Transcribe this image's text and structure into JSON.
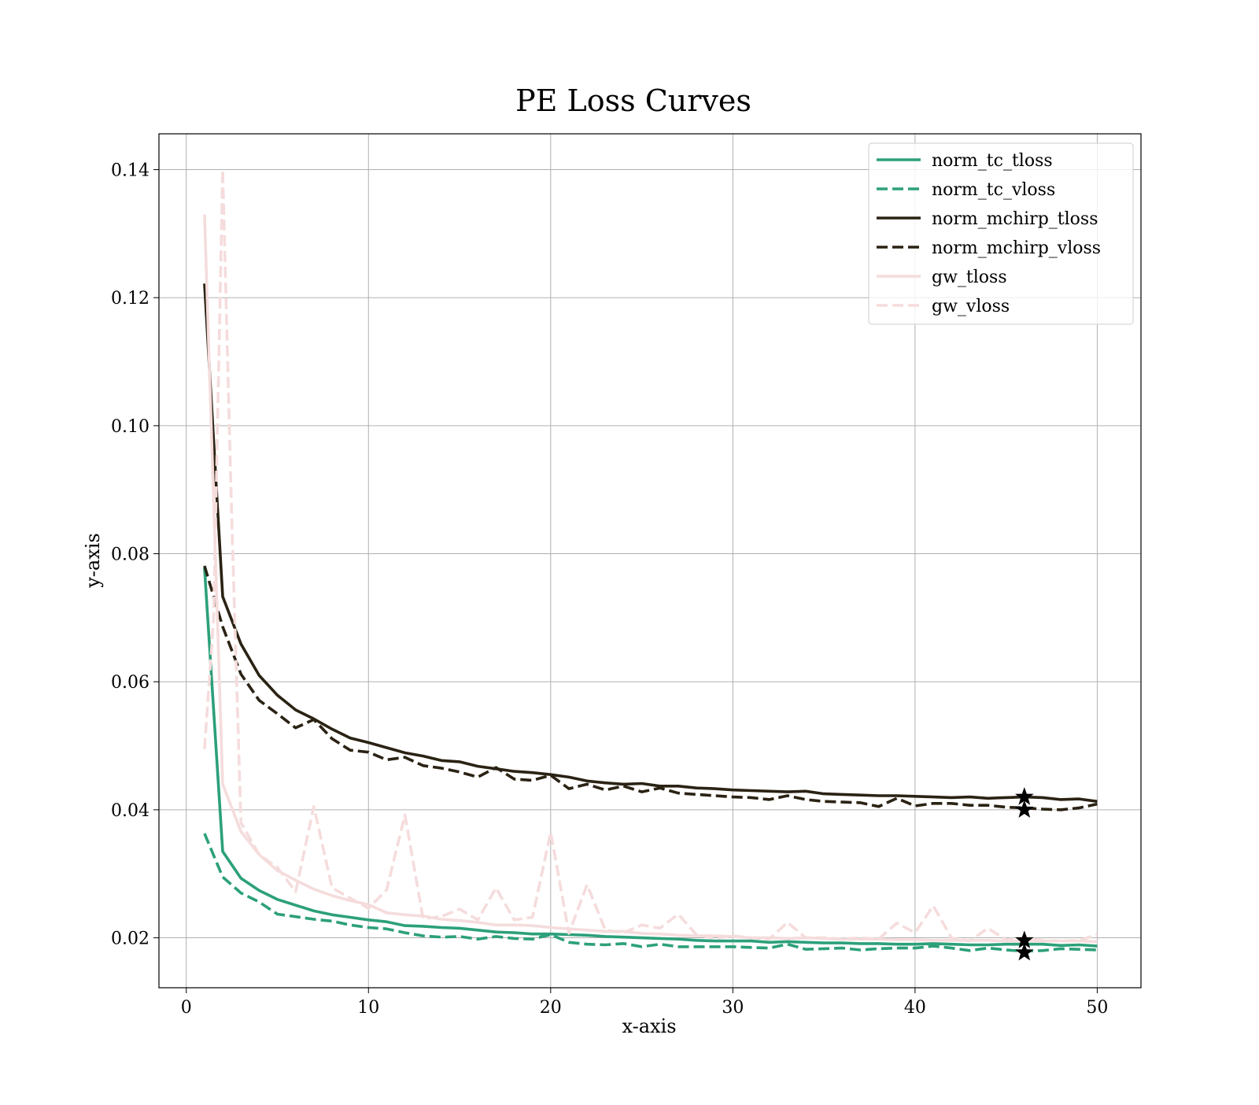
{
  "chart_data": {
    "type": "line",
    "title": "PE Loss Curves",
    "xlabel": "x-axis",
    "ylabel": "y-axis",
    "xlim": [
      -1.5,
      52.4
    ],
    "ylim": [
      0.0122,
      0.1456
    ],
    "xticks": [
      0,
      10,
      20,
      30,
      40,
      50
    ],
    "yticks": [
      0.02,
      0.04,
      0.06,
      0.08,
      0.1,
      0.12,
      0.14
    ],
    "ytick_labels": [
      "0.02",
      "0.04",
      "0.06",
      "0.08",
      "0.10",
      "0.12",
      "0.14"
    ],
    "grid": true,
    "legend_position": "top-right",
    "series": [
      {
        "name": "norm_tc_tloss",
        "color": "#2ca07a",
        "dash": "solid",
        "x": [
          1,
          2,
          3,
          4,
          5,
          6,
          7,
          8,
          9,
          10,
          11,
          12,
          13,
          14,
          15,
          16,
          17,
          18,
          19,
          20,
          21,
          22,
          23,
          24,
          25,
          26,
          27,
          28,
          29,
          30,
          31,
          32,
          33,
          34,
          35,
          36,
          37,
          38,
          39,
          40,
          41,
          42,
          43,
          44,
          45,
          46,
          47,
          48,
          49,
          50
        ],
        "values": [
          0.0778,
          0.0335,
          0.0293,
          0.0274,
          0.026,
          0.0251,
          0.0242,
          0.0236,
          0.0232,
          0.0228,
          0.0225,
          0.0219,
          0.0218,
          0.0216,
          0.0215,
          0.0212,
          0.0209,
          0.0208,
          0.0206,
          0.0206,
          0.0205,
          0.0204,
          0.0202,
          0.0201,
          0.02,
          0.0199,
          0.0198,
          0.0196,
          0.0195,
          0.0195,
          0.0195,
          0.0193,
          0.0194,
          0.0193,
          0.0192,
          0.0192,
          0.0191,
          0.0191,
          0.019,
          0.019,
          0.0191,
          0.019,
          0.0189,
          0.0189,
          0.019,
          0.019,
          0.019,
          0.0188,
          0.0189,
          0.0187
        ]
      },
      {
        "name": "norm_tc_vloss",
        "color": "#2ca07a",
        "dash": "dashed",
        "x": [
          1,
          2,
          3,
          4,
          5,
          6,
          7,
          8,
          9,
          10,
          11,
          12,
          13,
          14,
          15,
          16,
          17,
          18,
          19,
          20,
          21,
          22,
          23,
          24,
          25,
          26,
          27,
          28,
          29,
          30,
          31,
          32,
          33,
          34,
          35,
          36,
          37,
          38,
          39,
          40,
          41,
          42,
          43,
          44,
          45,
          46,
          47,
          48,
          49,
          50
        ],
        "values": [
          0.0363,
          0.0295,
          0.027,
          0.0256,
          0.0237,
          0.0233,
          0.0229,
          0.0226,
          0.022,
          0.0216,
          0.0214,
          0.0208,
          0.0203,
          0.0201,
          0.0202,
          0.0198,
          0.0202,
          0.0199,
          0.0198,
          0.0205,
          0.0193,
          0.019,
          0.0189,
          0.0191,
          0.0186,
          0.019,
          0.0186,
          0.0186,
          0.0186,
          0.0186,
          0.0185,
          0.0184,
          0.019,
          0.0182,
          0.0183,
          0.0184,
          0.0181,
          0.0183,
          0.0184,
          0.0184,
          0.0187,
          0.0184,
          0.018,
          0.0184,
          0.0181,
          0.0179,
          0.018,
          0.0183,
          0.0182,
          0.0181
        ]
      },
      {
        "name": "norm_mchirp_tloss",
        "color": "#2a2213",
        "dash": "solid",
        "x": [
          1,
          2,
          3,
          4,
          5,
          6,
          7,
          8,
          9,
          10,
          11,
          12,
          13,
          14,
          15,
          16,
          17,
          18,
          19,
          20,
          21,
          22,
          23,
          24,
          25,
          26,
          27,
          28,
          29,
          30,
          31,
          32,
          33,
          34,
          35,
          36,
          37,
          38,
          39,
          40,
          41,
          42,
          43,
          44,
          45,
          46,
          47,
          48,
          49,
          50
        ],
        "values": [
          0.1222,
          0.0733,
          0.0659,
          0.061,
          0.0579,
          0.0556,
          0.0542,
          0.0526,
          0.0512,
          0.0505,
          0.0497,
          0.0489,
          0.0484,
          0.0477,
          0.0475,
          0.0468,
          0.0464,
          0.046,
          0.0458,
          0.0455,
          0.0451,
          0.0445,
          0.0442,
          0.044,
          0.0441,
          0.0437,
          0.0437,
          0.0434,
          0.0433,
          0.0431,
          0.043,
          0.0429,
          0.0428,
          0.0429,
          0.0425,
          0.0424,
          0.0423,
          0.0422,
          0.0422,
          0.0421,
          0.042,
          0.0419,
          0.042,
          0.0418,
          0.0419,
          0.042,
          0.0419,
          0.0416,
          0.0417,
          0.0413
        ]
      },
      {
        "name": "norm_mchirp_vloss",
        "color": "#2a2213",
        "dash": "dashed",
        "x": [
          1,
          2,
          3,
          4,
          5,
          6,
          7,
          8,
          9,
          10,
          11,
          12,
          13,
          14,
          15,
          16,
          17,
          18,
          19,
          20,
          21,
          22,
          23,
          24,
          25,
          26,
          27,
          28,
          29,
          30,
          31,
          32,
          33,
          34,
          35,
          36,
          37,
          38,
          39,
          40,
          41,
          42,
          43,
          44,
          45,
          46,
          47,
          48,
          49,
          50
        ],
        "values": [
          0.0781,
          0.0686,
          0.0612,
          0.0571,
          0.055,
          0.0528,
          0.0541,
          0.0511,
          0.0493,
          0.049,
          0.0478,
          0.0482,
          0.0469,
          0.0465,
          0.0459,
          0.0451,
          0.0466,
          0.0448,
          0.0446,
          0.0454,
          0.0433,
          0.044,
          0.0431,
          0.0437,
          0.0428,
          0.0434,
          0.0426,
          0.0424,
          0.0422,
          0.042,
          0.0419,
          0.0416,
          0.0422,
          0.0416,
          0.0413,
          0.0412,
          0.0411,
          0.0405,
          0.0418,
          0.0406,
          0.041,
          0.041,
          0.0407,
          0.0407,
          0.0404,
          0.0403,
          0.0401,
          0.04,
          0.0403,
          0.0409
        ]
      },
      {
        "name": "gw_tloss",
        "color": "#f5dcdc",
        "dash": "solid",
        "x": [
          1,
          2,
          3,
          4,
          5,
          6,
          7,
          8,
          9,
          10,
          11,
          12,
          13,
          14,
          15,
          16,
          17,
          18,
          19,
          20,
          21,
          22,
          23,
          24,
          25,
          26,
          27,
          28,
          29,
          30,
          31,
          32,
          33,
          34,
          35,
          36,
          37,
          38,
          39,
          40,
          41,
          42,
          43,
          44,
          45,
          46,
          47,
          48,
          49,
          50
        ],
        "values": [
          0.133,
          0.044,
          0.0366,
          0.033,
          0.0305,
          0.029,
          0.0276,
          0.0266,
          0.0258,
          0.0252,
          0.0239,
          0.0236,
          0.0234,
          0.0229,
          0.0227,
          0.0224,
          0.022,
          0.022,
          0.0219,
          0.0216,
          0.0214,
          0.0212,
          0.021,
          0.021,
          0.0207,
          0.0206,
          0.0204,
          0.0203,
          0.0203,
          0.0202,
          0.02,
          0.02,
          0.0199,
          0.02,
          0.0199,
          0.0198,
          0.0198,
          0.0198,
          0.0197,
          0.0197,
          0.0196,
          0.0196,
          0.0196,
          0.0196,
          0.0195,
          0.0195,
          0.0195,
          0.0195,
          0.0195,
          0.0194
        ]
      },
      {
        "name": "gw_vloss",
        "color": "#f5dcdc",
        "dash": "dashed",
        "x": [
          1,
          1.5,
          2,
          2.5,
          3,
          4,
          5,
          6,
          7,
          8,
          9,
          10,
          11,
          12,
          13,
          14,
          15,
          16,
          17,
          18,
          19,
          20,
          21,
          22,
          23,
          24,
          25,
          26,
          27,
          28,
          29,
          30,
          31,
          32,
          33,
          34,
          35,
          36,
          37,
          38,
          39,
          40,
          41,
          42,
          43,
          44,
          45,
          46,
          47,
          48,
          49,
          50
        ],
        "values": [
          0.0495,
          0.07,
          0.14,
          0.085,
          0.038,
          0.033,
          0.031,
          0.0272,
          0.0405,
          0.0278,
          0.0262,
          0.0246,
          0.0275,
          0.0392,
          0.023,
          0.0233,
          0.0245,
          0.0228,
          0.0278,
          0.0228,
          0.0232,
          0.0365,
          0.0207,
          0.0283,
          0.0212,
          0.0208,
          0.022,
          0.0215,
          0.0237,
          0.0205,
          0.0199,
          0.0203,
          0.02,
          0.0198,
          0.0224,
          0.02,
          0.02,
          0.0198,
          0.02,
          0.0198,
          0.0223,
          0.0208,
          0.025,
          0.02,
          0.0195,
          0.0215,
          0.0197,
          0.02,
          0.0196,
          0.0195,
          0.0196,
          0.0205
        ]
      }
    ],
    "markers": [
      {
        "x": 46,
        "y": 0.042
      },
      {
        "x": 46,
        "y": 0.04
      },
      {
        "x": 46,
        "y": 0.0196
      },
      {
        "x": 46,
        "y": 0.0177
      }
    ]
  }
}
